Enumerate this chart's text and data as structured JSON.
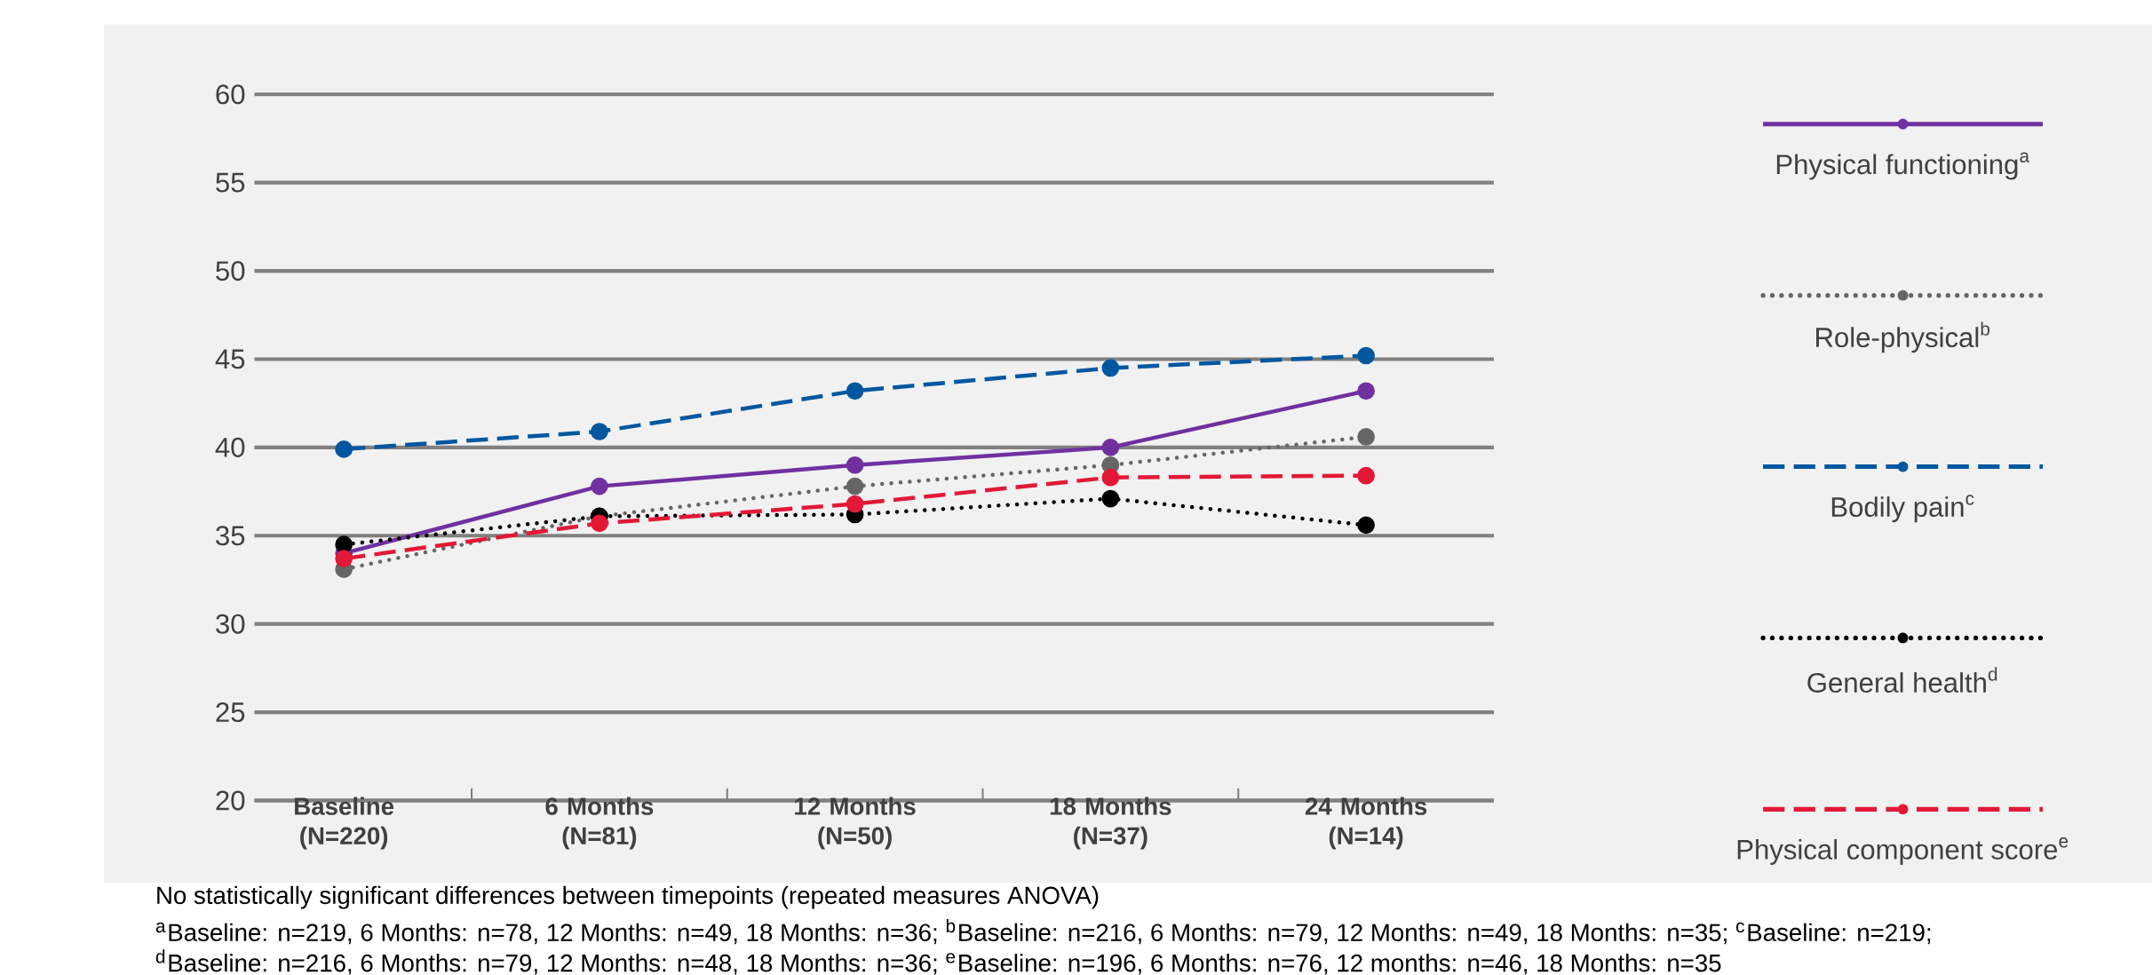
{
  "chart_data": {
    "type": "line",
    "categories": [
      "Baseline (N=220)",
      "6 Months (N=81)",
      "12 Months (N=50)",
      "18 Months (N=37)",
      "24 Months (N=14)"
    ],
    "series": [
      {
        "name": "Physical functioning$^{a}$",
        "color": "#7030a0",
        "line_style": "solid",
        "values": [
          34.0,
          37.8,
          39.0,
          40.0,
          43.2
        ]
      },
      {
        "name": "Role-physical$^{b}$",
        "color": "#666666",
        "line_style": "dotted",
        "values": [
          33.1,
          36.1,
          37.8,
          39.0,
          40.6
        ]
      },
      {
        "name": "Bodily pain$^{c}$",
        "color": "#0057a0",
        "line_style": "dashed",
        "values": [
          39.9,
          40.9,
          43.2,
          44.5,
          45.2
        ]
      },
      {
        "name": "General health$^{d}$",
        "color": "#000000",
        "line_style": "dotted",
        "values": [
          34.5,
          36.1,
          36.2,
          37.1,
          35.6
        ]
      },
      {
        "name": "Physical component score$^{e}$",
        "color": "#e31837",
        "line_style": "dashed",
        "values": [
          33.7,
          35.7,
          36.8,
          38.3,
          38.4
        ]
      }
    ],
    "ylim": [
      20,
      60
    ],
    "yticks": [
      20,
      25,
      30,
      35,
      40,
      45,
      50,
      55,
      60
    ],
    "grid": "y",
    "marker": "circle",
    "legend": "right",
    "annotations": [
      "No statistically significant differences between timepoints (repeated measures ANOVA)",
      "$^{a}$Baseline: n=219, 6 Months: n=78, 12 Months: n=49, 18 Months: n=36; $^{b}$Baseline: n=216, 6 Months: n=79, 12 Months: n=49, 18 Months: n=35; $^{c}$Baseline: n=219;",
      "$^{d}$Baseline: n=216, 6 Months: n=79, 12 Months: n=48, 18 Months: n=36; $^{e}$Baseline: n=196, 6 Months: n=76, 12 months: n=46, 18 Months: n=35"
    ]
  }
}
